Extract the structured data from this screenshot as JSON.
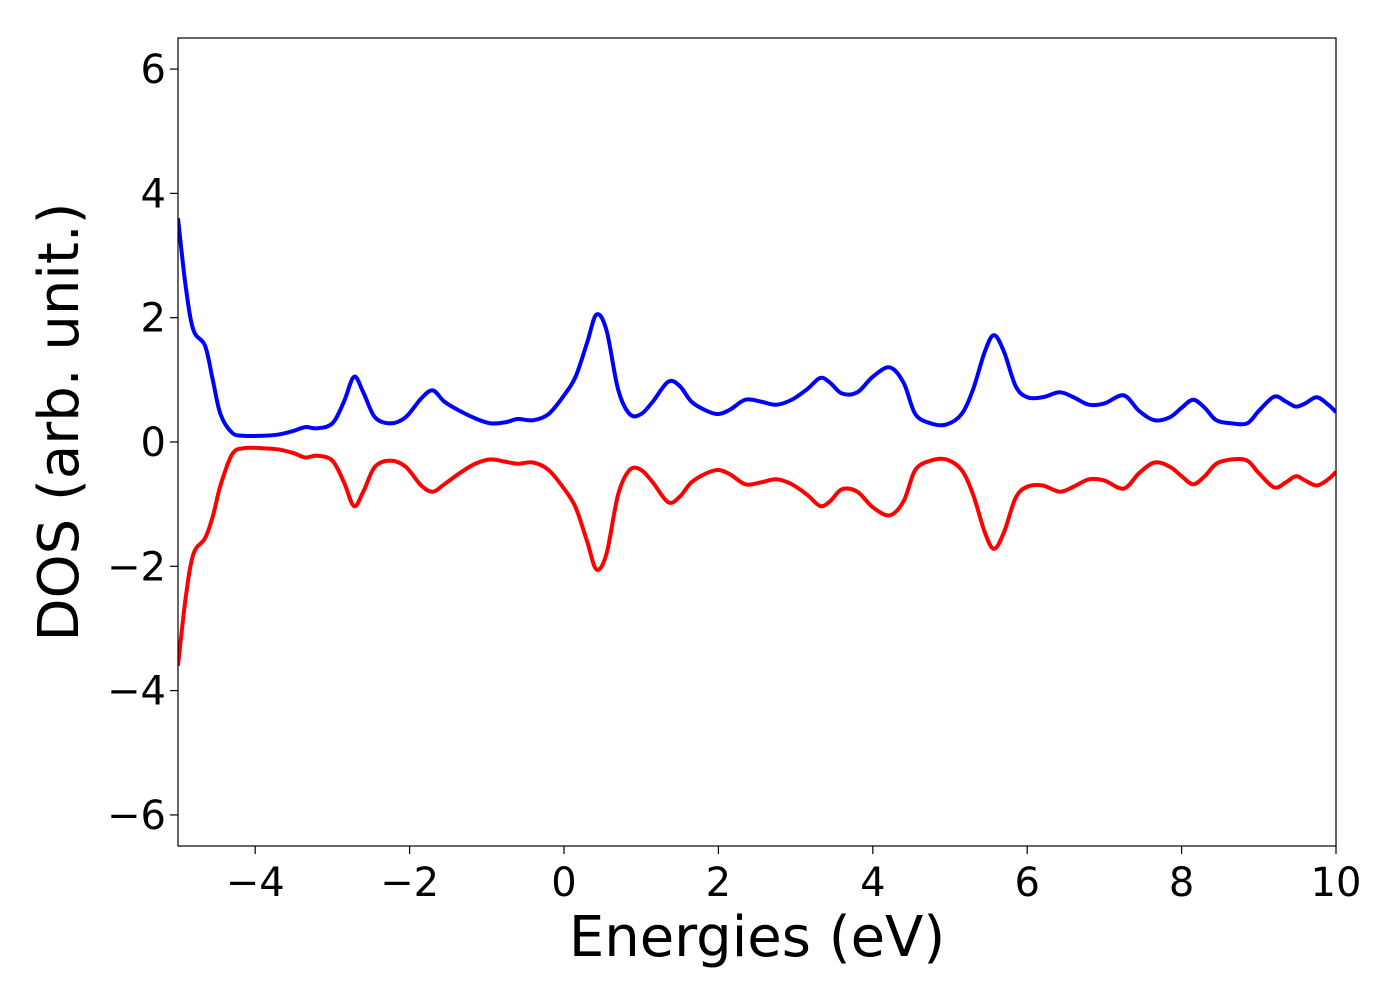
{
  "chart_data": {
    "type": "line",
    "xlabel": "Energies (eV)",
    "ylabel": "DOS (arb. unit.)",
    "xlim": [
      -5,
      10
    ],
    "ylim": [
      -6.5,
      6.5
    ],
    "xticks": [
      -4,
      -2,
      0,
      2,
      4,
      6,
      8,
      10
    ],
    "yticks": [
      -6,
      -4,
      -2,
      0,
      2,
      4,
      6
    ],
    "grid": false,
    "legend": "none",
    "series": [
      {
        "color": "#0000ff",
        "points": [
          [
            -5.0,
            3.6
          ],
          [
            -4.9,
            2.5
          ],
          [
            -4.8,
            1.8
          ],
          [
            -4.65,
            1.55
          ],
          [
            -4.55,
            1.0
          ],
          [
            -4.45,
            0.45
          ],
          [
            -4.3,
            0.15
          ],
          [
            -4.15,
            0.1
          ],
          [
            -3.9,
            0.1
          ],
          [
            -3.7,
            0.12
          ],
          [
            -3.5,
            0.18
          ],
          [
            -3.35,
            0.24
          ],
          [
            -3.2,
            0.22
          ],
          [
            -3.0,
            0.3
          ],
          [
            -2.85,
            0.65
          ],
          [
            -2.72,
            1.05
          ],
          [
            -2.6,
            0.8
          ],
          [
            -2.45,
            0.4
          ],
          [
            -2.25,
            0.3
          ],
          [
            -2.05,
            0.4
          ],
          [
            -1.85,
            0.7
          ],
          [
            -1.7,
            0.83
          ],
          [
            -1.55,
            0.65
          ],
          [
            -1.35,
            0.5
          ],
          [
            -1.15,
            0.38
          ],
          [
            -0.95,
            0.3
          ],
          [
            -0.75,
            0.32
          ],
          [
            -0.6,
            0.37
          ],
          [
            -0.4,
            0.35
          ],
          [
            -0.2,
            0.45
          ],
          [
            0.0,
            0.75
          ],
          [
            0.15,
            1.05
          ],
          [
            0.3,
            1.6
          ],
          [
            0.42,
            2.05
          ],
          [
            0.55,
            1.8
          ],
          [
            0.7,
            0.85
          ],
          [
            0.85,
            0.45
          ],
          [
            1.0,
            0.45
          ],
          [
            1.15,
            0.65
          ],
          [
            1.35,
            0.97
          ],
          [
            1.5,
            0.9
          ],
          [
            1.65,
            0.65
          ],
          [
            1.85,
            0.5
          ],
          [
            2.0,
            0.45
          ],
          [
            2.15,
            0.52
          ],
          [
            2.35,
            0.68
          ],
          [
            2.55,
            0.65
          ],
          [
            2.75,
            0.6
          ],
          [
            2.95,
            0.68
          ],
          [
            3.15,
            0.85
          ],
          [
            3.32,
            1.03
          ],
          [
            3.45,
            0.95
          ],
          [
            3.6,
            0.78
          ],
          [
            3.8,
            0.8
          ],
          [
            4.0,
            1.05
          ],
          [
            4.22,
            1.2
          ],
          [
            4.4,
            0.95
          ],
          [
            4.55,
            0.45
          ],
          [
            4.75,
            0.3
          ],
          [
            4.95,
            0.28
          ],
          [
            5.15,
            0.45
          ],
          [
            5.3,
            0.85
          ],
          [
            5.45,
            1.45
          ],
          [
            5.57,
            1.72
          ],
          [
            5.7,
            1.45
          ],
          [
            5.85,
            0.9
          ],
          [
            6.0,
            0.72
          ],
          [
            6.2,
            0.72
          ],
          [
            6.42,
            0.8
          ],
          [
            6.6,
            0.72
          ],
          [
            6.8,
            0.6
          ],
          [
            7.0,
            0.62
          ],
          [
            7.25,
            0.75
          ],
          [
            7.45,
            0.5
          ],
          [
            7.65,
            0.35
          ],
          [
            7.85,
            0.4
          ],
          [
            8.0,
            0.55
          ],
          [
            8.15,
            0.68
          ],
          [
            8.3,
            0.55
          ],
          [
            8.45,
            0.35
          ],
          [
            8.65,
            0.3
          ],
          [
            8.85,
            0.3
          ],
          [
            9.0,
            0.5
          ],
          [
            9.2,
            0.73
          ],
          [
            9.35,
            0.65
          ],
          [
            9.48,
            0.57
          ],
          [
            9.6,
            0.62
          ],
          [
            9.75,
            0.72
          ],
          [
            9.9,
            0.6
          ],
          [
            10.0,
            0.48
          ]
        ]
      },
      {
        "color": "#ff0000",
        "points": [
          [
            -5.0,
            -3.6
          ],
          [
            -4.9,
            -2.5
          ],
          [
            -4.8,
            -1.8
          ],
          [
            -4.65,
            -1.55
          ],
          [
            -4.55,
            -1.2
          ],
          [
            -4.45,
            -0.7
          ],
          [
            -4.3,
            -0.2
          ],
          [
            -4.15,
            -0.1
          ],
          [
            -3.9,
            -0.1
          ],
          [
            -3.7,
            -0.12
          ],
          [
            -3.5,
            -0.18
          ],
          [
            -3.35,
            -0.25
          ],
          [
            -3.2,
            -0.22
          ],
          [
            -3.0,
            -0.3
          ],
          [
            -2.85,
            -0.65
          ],
          [
            -2.72,
            -1.03
          ],
          [
            -2.6,
            -0.8
          ],
          [
            -2.45,
            -0.4
          ],
          [
            -2.25,
            -0.3
          ],
          [
            -2.05,
            -0.4
          ],
          [
            -1.85,
            -0.7
          ],
          [
            -1.7,
            -0.8
          ],
          [
            -1.55,
            -0.68
          ],
          [
            -1.35,
            -0.5
          ],
          [
            -1.15,
            -0.35
          ],
          [
            -0.95,
            -0.28
          ],
          [
            -0.75,
            -0.32
          ],
          [
            -0.6,
            -0.35
          ],
          [
            -0.4,
            -0.33
          ],
          [
            -0.2,
            -0.45
          ],
          [
            0.0,
            -0.75
          ],
          [
            0.15,
            -1.05
          ],
          [
            0.3,
            -1.6
          ],
          [
            0.42,
            -2.05
          ],
          [
            0.55,
            -1.8
          ],
          [
            0.7,
            -0.85
          ],
          [
            0.85,
            -0.45
          ],
          [
            1.0,
            -0.45
          ],
          [
            1.15,
            -0.65
          ],
          [
            1.35,
            -0.97
          ],
          [
            1.5,
            -0.88
          ],
          [
            1.65,
            -0.65
          ],
          [
            1.85,
            -0.5
          ],
          [
            2.0,
            -0.45
          ],
          [
            2.15,
            -0.52
          ],
          [
            2.35,
            -0.68
          ],
          [
            2.55,
            -0.65
          ],
          [
            2.75,
            -0.6
          ],
          [
            2.95,
            -0.68
          ],
          [
            3.15,
            -0.85
          ],
          [
            3.32,
            -1.03
          ],
          [
            3.45,
            -0.95
          ],
          [
            3.6,
            -0.76
          ],
          [
            3.8,
            -0.8
          ],
          [
            4.0,
            -1.05
          ],
          [
            4.22,
            -1.18
          ],
          [
            4.4,
            -0.95
          ],
          [
            4.55,
            -0.45
          ],
          [
            4.75,
            -0.3
          ],
          [
            4.95,
            -0.28
          ],
          [
            5.15,
            -0.45
          ],
          [
            5.3,
            -0.85
          ],
          [
            5.45,
            -1.45
          ],
          [
            5.57,
            -1.72
          ],
          [
            5.7,
            -1.45
          ],
          [
            5.85,
            -0.9
          ],
          [
            6.0,
            -0.72
          ],
          [
            6.2,
            -0.7
          ],
          [
            6.42,
            -0.8
          ],
          [
            6.6,
            -0.72
          ],
          [
            6.8,
            -0.6
          ],
          [
            7.0,
            -0.62
          ],
          [
            7.25,
            -0.75
          ],
          [
            7.45,
            -0.5
          ],
          [
            7.65,
            -0.33
          ],
          [
            7.85,
            -0.4
          ],
          [
            8.0,
            -0.55
          ],
          [
            8.15,
            -0.68
          ],
          [
            8.3,
            -0.55
          ],
          [
            8.45,
            -0.35
          ],
          [
            8.65,
            -0.28
          ],
          [
            8.85,
            -0.3
          ],
          [
            9.0,
            -0.5
          ],
          [
            9.2,
            -0.73
          ],
          [
            9.35,
            -0.65
          ],
          [
            9.48,
            -0.55
          ],
          [
            9.6,
            -0.62
          ],
          [
            9.75,
            -0.7
          ],
          [
            9.9,
            -0.6
          ],
          [
            10.0,
            -0.48
          ]
        ]
      }
    ]
  }
}
